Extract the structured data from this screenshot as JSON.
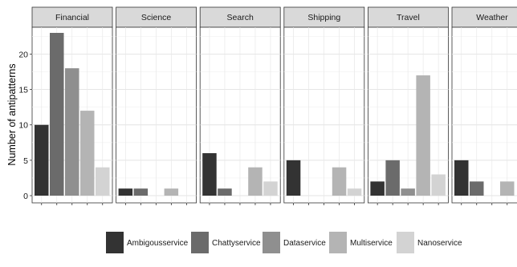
{
  "chart_data": {
    "type": "bar",
    "ylabel": "Number of antipatterns",
    "xlabel": "",
    "ylim": [
      0,
      24
    ],
    "yticks": [
      0,
      5,
      10,
      15,
      20
    ],
    "grid": true,
    "legend_position": "bottom",
    "facets": [
      "Financial",
      "Science",
      "Search",
      "Shipping",
      "Travel",
      "Weather"
    ],
    "series": [
      {
        "name": "Ambigousservice",
        "color": "#333333",
        "values": [
          10,
          1,
          6,
          5,
          2,
          5
        ]
      },
      {
        "name": "Chattyservice",
        "color": "#6b6b6b",
        "values": [
          23,
          1,
          1,
          0,
          5,
          2
        ]
      },
      {
        "name": "Dataservice",
        "color": "#8f8f8f",
        "values": [
          18,
          0,
          0,
          0,
          1,
          0
        ]
      },
      {
        "name": "Multiservice",
        "color": "#b4b4b4",
        "values": [
          12,
          1,
          4,
          4,
          17,
          2
        ]
      },
      {
        "name": "Nanoservice",
        "color": "#d3d3d3",
        "values": [
          4,
          0,
          2,
          1,
          3,
          0
        ]
      }
    ]
  }
}
